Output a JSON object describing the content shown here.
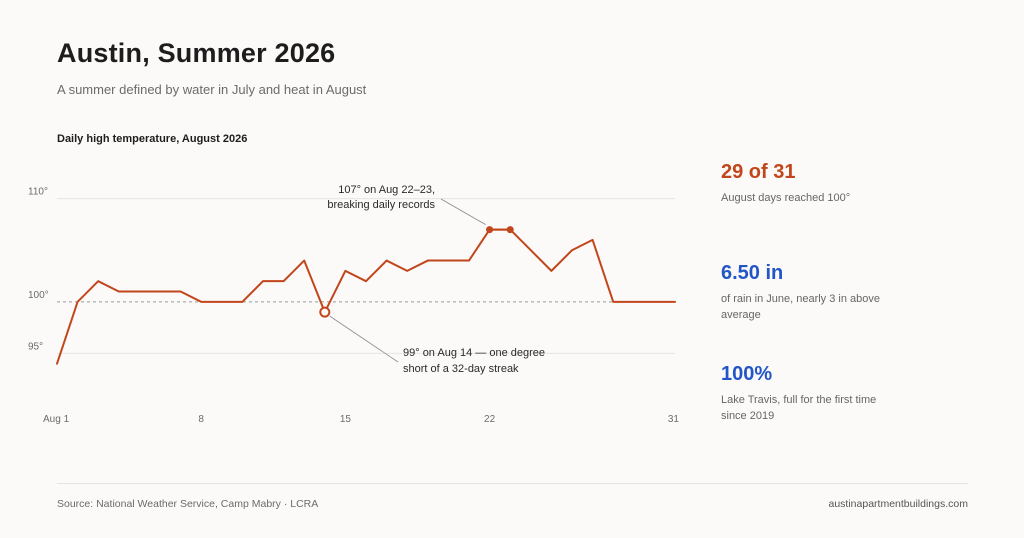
{
  "header": {
    "title": "Austin, Summer 2026",
    "subtitle": "A summer defined by water in July and heat in August"
  },
  "chart_data": {
    "type": "line",
    "title": "Daily high temperature, August 2026",
    "xlabel": "",
    "ylabel": "",
    "xlim": [
      1,
      31
    ],
    "ylim": [
      90,
      112
    ],
    "x_ticks": [
      {
        "value": 1,
        "label": "Aug 1"
      },
      {
        "value": 8,
        "label": "8"
      },
      {
        "value": 15,
        "label": "15"
      },
      {
        "value": 22,
        "label": "22"
      },
      {
        "value": 31,
        "label": "31"
      }
    ],
    "y_ticks": [
      {
        "value": 95,
        "label": "95°"
      },
      {
        "value": 100,
        "label": "100°"
      },
      {
        "value": 110,
        "label": "110°"
      }
    ],
    "reference_line": {
      "value": 100,
      "style": "dashed"
    },
    "grid": true,
    "series": [
      {
        "color": "#c2461b",
        "x": [
          1,
          2,
          3,
          4,
          5,
          6,
          7,
          8,
          9,
          10,
          11,
          12,
          13,
          14,
          15,
          16,
          17,
          18,
          19,
          20,
          21,
          22,
          23,
          24,
          25,
          26,
          27,
          28,
          29,
          30,
          31
        ],
        "y": [
          94,
          100,
          102,
          101,
          101,
          101,
          101,
          100,
          100,
          100,
          102,
          102,
          104,
          99,
          103,
          102,
          104,
          103,
          104,
          104,
          104,
          107,
          107,
          105,
          103,
          105,
          106,
          100,
          100,
          100,
          100
        ]
      }
    ],
    "annotations": [
      {
        "lines": [
          "107° on Aug 22–23,",
          "breaking daily records"
        ],
        "points": [
          22,
          23
        ],
        "marker": "filled"
      },
      {
        "lines": [
          "99° on Aug 14 — one degree",
          "short of a 32-day streak"
        ],
        "points": [
          14
        ],
        "marker": "hollow"
      }
    ]
  },
  "stats": [
    {
      "value": "29 of 31",
      "desc": "August days reached 100°",
      "color": "#c2461b"
    },
    {
      "value": "6.50 in",
      "desc": "of rain in June, nearly 3 in above average",
      "color": "#2255c8"
    },
    {
      "value": "100%",
      "desc": "Lake Travis, full for the first time since 2019",
      "color": "#2255c8"
    }
  ],
  "footer": {
    "source": "Source: National Weather Service, Camp Mabry · LCRA",
    "site": "austinapartmentbuildings.com"
  }
}
